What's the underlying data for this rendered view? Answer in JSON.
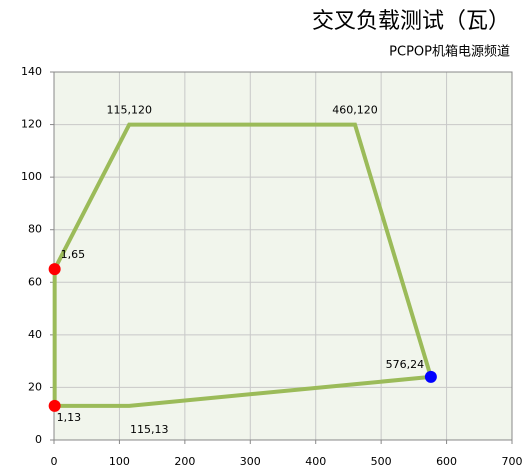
{
  "chart_data": {
    "type": "line",
    "title": "交叉负载测试（瓦）",
    "subtitle": "PCPOP机箱电源频道",
    "x": [
      1,
      115,
      576,
      460,
      115,
      1,
      1
    ],
    "values": [
      13,
      13,
      24,
      120,
      120,
      65,
      13
    ],
    "value_labels": [
      "1,13",
      "115,13",
      "576,24",
      "460,120",
      "115,120",
      "1,65",
      null
    ],
    "color": "#9bbb59",
    "marker_colors": [
      "#ff0000",
      null,
      "#0000ff",
      null,
      null,
      "#ff0000",
      null
    ],
    "xlim": [
      0,
      700
    ],
    "xticks": [
      0,
      100,
      200,
      300,
      400,
      500,
      600,
      700
    ],
    "ylim": [
      0,
      140
    ],
    "yticks": [
      0,
      20,
      40,
      60,
      80,
      100,
      120,
      140
    ],
    "grid": true,
    "plot_background": "#f1f5ec"
  }
}
